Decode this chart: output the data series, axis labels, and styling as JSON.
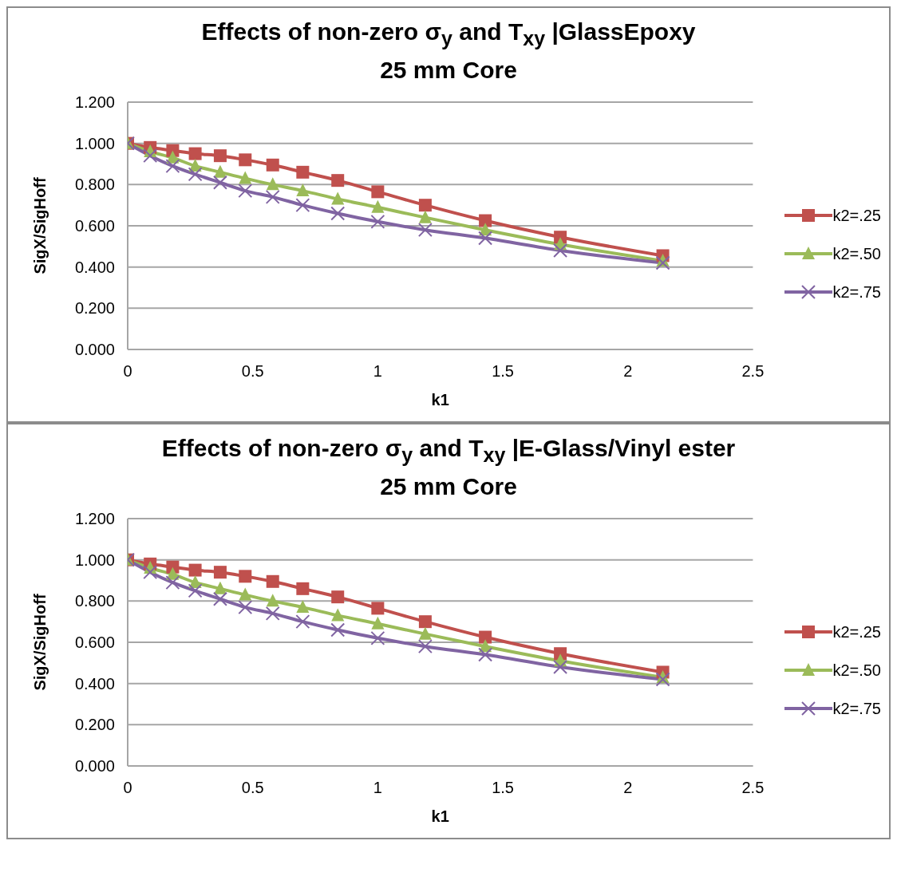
{
  "chart_data": [
    {
      "type": "line",
      "title": "Effects of non-zero σ$_{y}$ and Τ$_{xy}$  |GlassEpoxy",
      "subtitle": "25 mm Core",
      "xlabel": "k1",
      "ylabel": "SigX/SigHoff",
      "x": [
        0,
        0.09,
        0.18,
        0.27,
        0.37,
        0.47,
        0.58,
        0.7,
        0.84,
        1.0,
        1.19,
        1.43,
        1.73,
        2.14
      ],
      "series": [
        {
          "name": "k2=.25",
          "color": "#c0504d",
          "marker": "square",
          "values": [
            1.0,
            0.98,
            0.965,
            0.95,
            0.94,
            0.92,
            0.895,
            0.86,
            0.82,
            0.765,
            0.7,
            0.625,
            0.545,
            0.455
          ]
        },
        {
          "name": "k2=.50",
          "color": "#9bbb59",
          "marker": "triangle",
          "values": [
            1.0,
            0.96,
            0.93,
            0.89,
            0.86,
            0.83,
            0.8,
            0.77,
            0.73,
            0.69,
            0.64,
            0.58,
            0.51,
            0.43
          ]
        },
        {
          "name": "k2=.75",
          "color": "#8064a2",
          "marker": "cross",
          "values": [
            1.0,
            0.94,
            0.89,
            0.85,
            0.81,
            0.77,
            0.74,
            0.7,
            0.66,
            0.62,
            0.58,
            0.54,
            0.48,
            0.42
          ]
        }
      ],
      "xlim": [
        0,
        2.5
      ],
      "xticks": [
        0,
        0.5,
        1,
        1.5,
        2,
        2.5
      ],
      "ylim": [
        0,
        1.2
      ],
      "yticks": [
        {
          "value": 0,
          "label": "0.000"
        },
        {
          "value": 0.2,
          "label": "0.200"
        },
        {
          "value": 0.4,
          "label": "0.400"
        },
        {
          "value": 0.6,
          "label": "0.600"
        },
        {
          "value": 0.8,
          "label": "0.800"
        },
        {
          "value": 1.0,
          "label": "1.000"
        },
        {
          "value": 1.2,
          "label": "1.200"
        }
      ],
      "grid": "y",
      "legend": "right",
      "line_style": "solid"
    },
    {
      "type": "line",
      "title": "Effects of non-zero σ$_{y}$ and Τ$_{xy}$  |E-Glass/Vinyl ester",
      "subtitle": "25 mm Core",
      "xlabel": "k1",
      "ylabel": "SigX/SigHoff",
      "x": [
        0,
        0.09,
        0.18,
        0.27,
        0.37,
        0.47,
        0.58,
        0.7,
        0.84,
        1.0,
        1.19,
        1.43,
        1.73,
        2.14
      ],
      "series": [
        {
          "name": "k2=.25",
          "color": "#c0504d",
          "marker": "square",
          "values": [
            1.0,
            0.98,
            0.965,
            0.95,
            0.94,
            0.92,
            0.895,
            0.86,
            0.82,
            0.765,
            0.7,
            0.625,
            0.545,
            0.455
          ]
        },
        {
          "name": "k2=.50",
          "color": "#9bbb59",
          "marker": "triangle",
          "values": [
            1.0,
            0.96,
            0.93,
            0.89,
            0.86,
            0.83,
            0.8,
            0.77,
            0.73,
            0.69,
            0.64,
            0.58,
            0.51,
            0.43
          ]
        },
        {
          "name": "k2=.75",
          "color": "#8064a2",
          "marker": "cross",
          "values": [
            1.0,
            0.94,
            0.89,
            0.85,
            0.81,
            0.77,
            0.74,
            0.7,
            0.66,
            0.62,
            0.58,
            0.54,
            0.48,
            0.42
          ]
        }
      ],
      "xlim": [
        0,
        2.5
      ],
      "xticks": [
        0,
        0.5,
        1,
        1.5,
        2,
        2.5
      ],
      "ylim": [
        0,
        1.2
      ],
      "yticks": [
        {
          "value": 0,
          "label": "0.000"
        },
        {
          "value": 0.2,
          "label": "0.200"
        },
        {
          "value": 0.4,
          "label": "0.400"
        },
        {
          "value": 0.6,
          "label": "0.600"
        },
        {
          "value": 0.8,
          "label": "0.800"
        },
        {
          "value": 1.0,
          "label": "1.000"
        },
        {
          "value": 1.2,
          "label": "1.200"
        }
      ],
      "grid": "y",
      "legend": "right",
      "line_style": "solid"
    }
  ]
}
